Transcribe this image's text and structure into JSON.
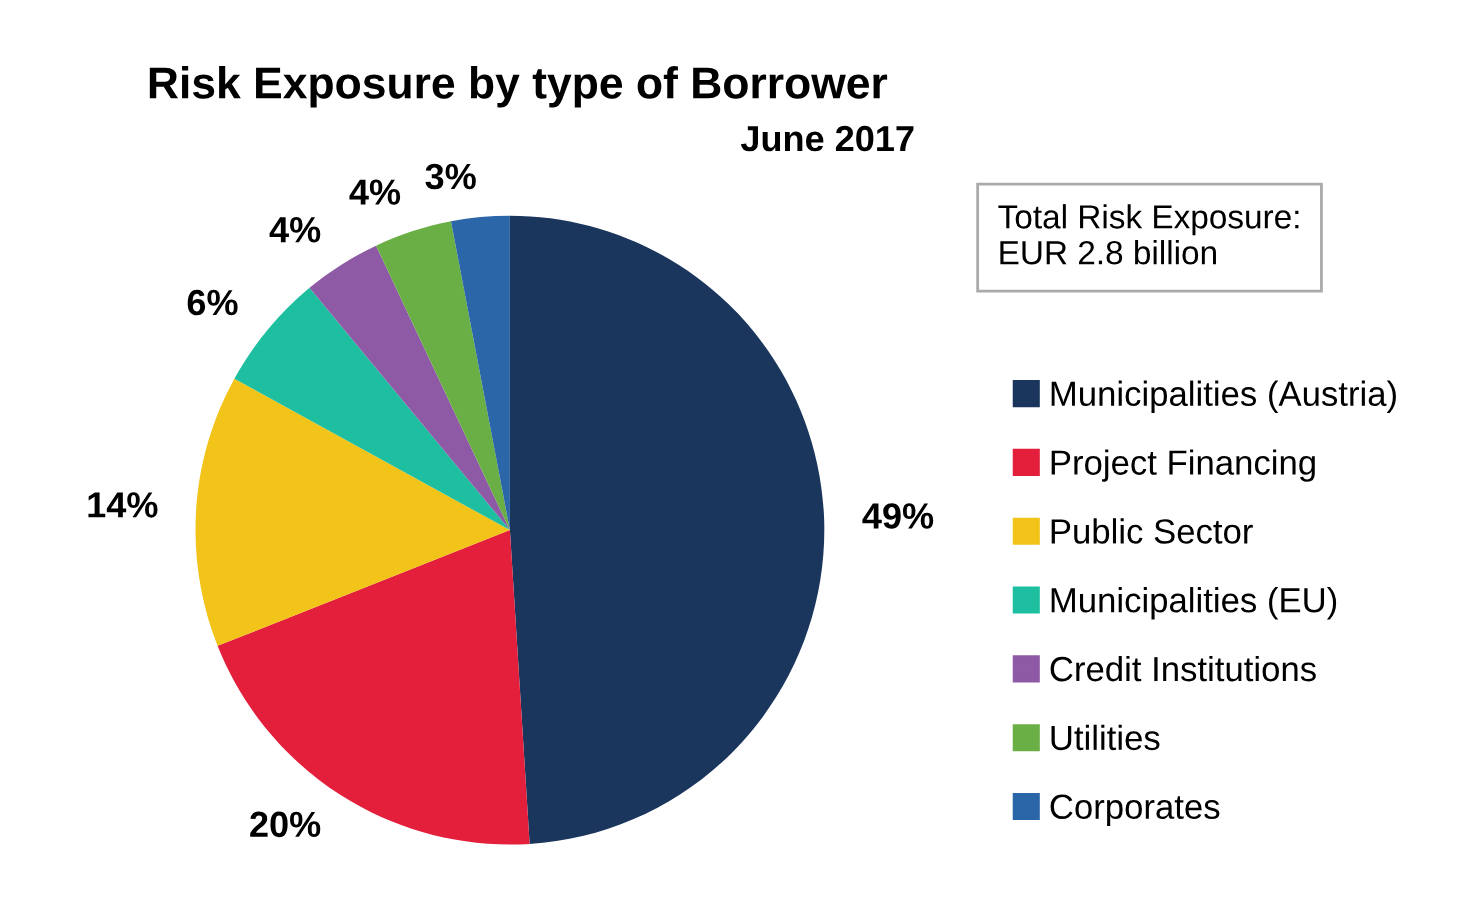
{
  "chart_data": {
    "type": "pie",
    "title": "Risk Exposure by type of Borrower",
    "subtitle": "June 2017",
    "categories": [
      "Municipalities (Austria)",
      "Project Financing",
      "Public Sector",
      "Municipalities (EU)",
      "Credit Institutions",
      "Utilities",
      "Corporates"
    ],
    "values": [
      49,
      20,
      14,
      6,
      4,
      4,
      3
    ],
    "value_labels": [
      "49%",
      "20%",
      "14%",
      "6%",
      "4%",
      "4%",
      "3%"
    ],
    "colors": [
      "#1b365d",
      "#e31f3c",
      "#f2c318",
      "#1ebfa0",
      "#8e5aa5",
      "#6aaf45",
      "#2a66a8"
    ],
    "annotations": [
      "Total Risk Exposure:\nEUR 2.8 billion"
    ],
    "legend": "right"
  }
}
